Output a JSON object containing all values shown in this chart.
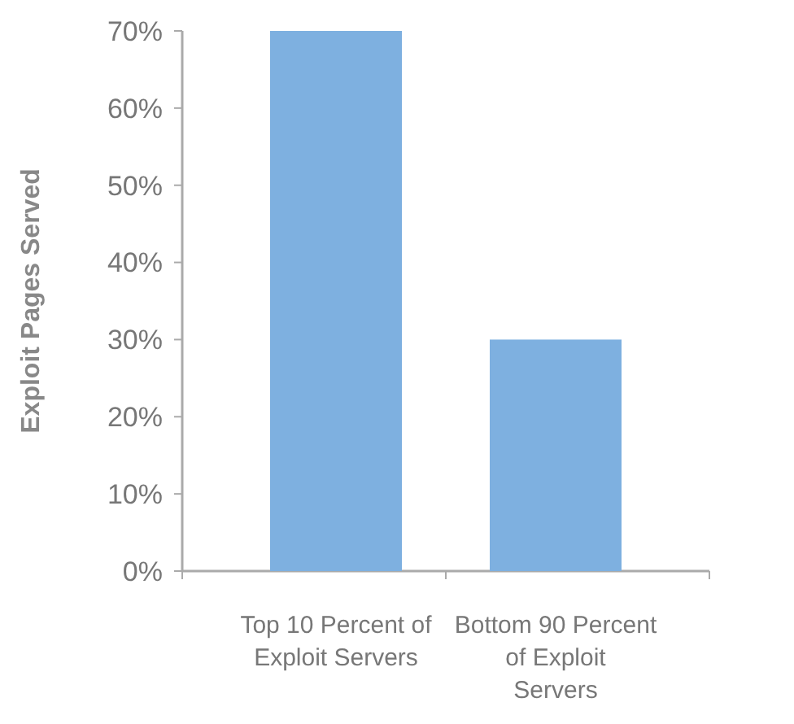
{
  "chart_data": {
    "type": "bar",
    "ylabel": "Exploit Pages Served",
    "categories": [
      "Top 10 Percent of Exploit Servers",
      "Bottom 90 Percent of Exploit Servers"
    ],
    "values": [
      70,
      30
    ],
    "color": "#7eb0e0",
    "ylim": [
      0,
      70
    ],
    "yticks": [
      {
        "value": 0,
        "label": "0%"
      },
      {
        "value": 10,
        "label": "10%"
      },
      {
        "value": 20,
        "label": "20%"
      },
      {
        "value": 30,
        "label": "30%"
      },
      {
        "value": 40,
        "label": "40%"
      },
      {
        "value": 50,
        "label": "50%"
      },
      {
        "value": 60,
        "label": "60%"
      },
      {
        "value": 70,
        "label": "70%"
      }
    ],
    "grid": false
  }
}
